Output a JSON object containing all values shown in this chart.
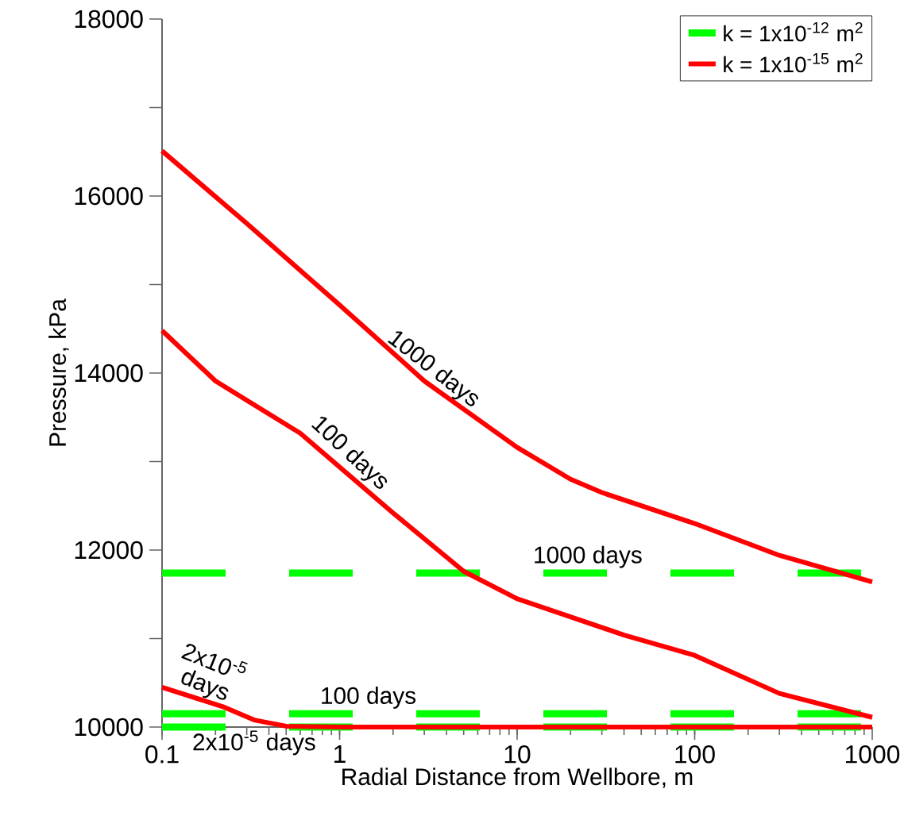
{
  "chart_data": {
    "type": "line",
    "xlabel": "Radial Distance from Wellbore, m",
    "ylabel": "Pressure, kPa",
    "log": "x",
    "xlim": [
      0.1,
      1000
    ],
    "ylim": [
      10000,
      18000
    ],
    "xticks": [
      0.1,
      1,
      10,
      100,
      1000
    ],
    "yticks": [
      10000,
      {
        "value": 11000,
        "label": null
      },
      12000,
      {
        "value": 13000,
        "label": null
      },
      14000,
      {
        "value": 15000,
        "label": null
      },
      16000,
      {
        "value": 17000,
        "label": null
      },
      18000
    ],
    "legend": "top right",
    "series": [
      {
        "name": "k = 1x10$^{-12}$ m$^{2}$",
        "color": "#00ff00",
        "line_style": "dashed",
        "x": [
          0.1,
          1000
        ],
        "values": [
          11740,
          11740
        ]
      },
      {
        "color": "#00ff00",
        "line_style": "dashed",
        "x": [
          0.1,
          1000
        ],
        "values": [
          10150,
          10150
        ]
      },
      {
        "color": "#00ff00",
        "line_style": "dashed",
        "x": [
          0.1,
          1000
        ],
        "values": [
          10000,
          10000
        ]
      },
      {
        "name": "k = 1x10$^{-15}$ m$^{2}$",
        "color": "#ff0000",
        "line_style": "solid",
        "x": [
          0.1,
          0.3,
          1,
          3,
          10,
          20,
          30,
          100,
          300,
          1000
        ],
        "values": [
          16510,
          15690,
          14770,
          13910,
          13160,
          12800,
          12650,
          12300,
          11940,
          11640
        ]
      },
      {
        "color": "#ff0000",
        "line_style": "solid",
        "x": [
          0.1,
          0.2,
          0.6,
          2,
          5,
          10,
          40,
          100,
          300,
          1000
        ],
        "values": [
          14480,
          13910,
          13320,
          12420,
          11760,
          11450,
          11040,
          10810,
          10380,
          10110
        ]
      },
      {
        "color": "#ff0000",
        "line_style": "solid",
        "x": [
          0.1,
          0.22,
          0.33,
          0.5,
          1,
          1000
        ],
        "values": [
          10450,
          10230,
          10080,
          10010,
          10000,
          10000
        ]
      }
    ],
    "annotations": [
      {
        "text": "1000 days",
        "x": 3,
        "y": 13910
      },
      {
        "text": "100 days",
        "x": 1,
        "y": 12970
      },
      {
        "text": "2x10$^{-5}$ days",
        "x": 0.14,
        "y": 10380
      },
      {
        "text": "1000 days",
        "x": 25,
        "y": 11740
      },
      {
        "text": "100 days",
        "x": 1.45,
        "y": 10150
      },
      {
        "text": "2x10$^{-5}$ days",
        "x": 0.33,
        "y": 10000
      }
    ]
  }
}
